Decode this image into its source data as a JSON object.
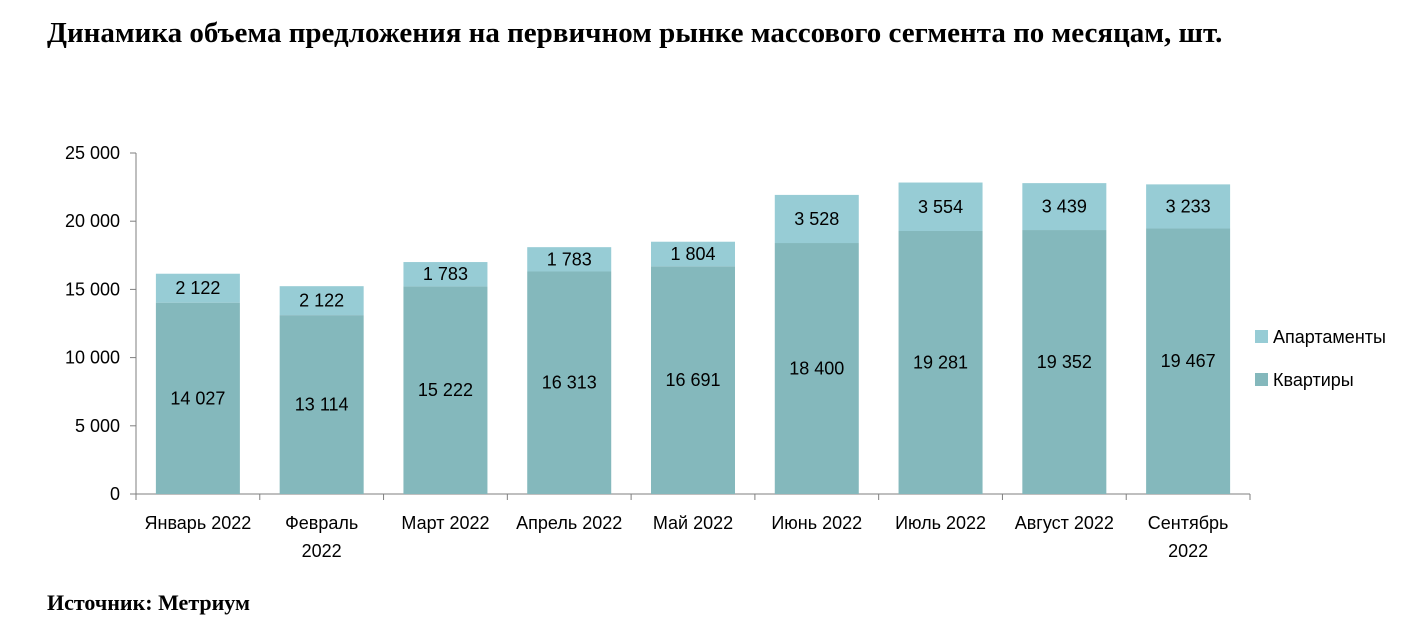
{
  "title": "Динамика объема предложения на первичном рынке массового сегмента по месяцам, шт.",
  "source": "Источник: Метриум",
  "colors": {
    "kvartiry": "#84b8bc",
    "apartamenty": "#97ccd5",
    "axis": "#7f7f7f"
  },
  "chart_data": {
    "type": "bar",
    "stacked": true,
    "categories": [
      [
        "Январь 2022"
      ],
      [
        "Февраль",
        "2022"
      ],
      [
        "Март 2022"
      ],
      [
        "Апрель 2022"
      ],
      [
        "Май 2022"
      ],
      [
        "Июнь 2022"
      ],
      [
        "Июль 2022"
      ],
      [
        "Август 2022"
      ],
      [
        "Сентябрь",
        "2022"
      ]
    ],
    "series": [
      {
        "name": "Квартиры",
        "values": [
          14027,
          13114,
          15222,
          16313,
          16691,
          18400,
          19281,
          19352,
          19467
        ]
      },
      {
        "name": "Апартаменты",
        "values": [
          2122,
          2122,
          1783,
          1783,
          1804,
          3528,
          3554,
          3439,
          3233
        ]
      }
    ],
    "ylim": [
      0,
      25000
    ],
    "yticks": [
      0,
      5000,
      10000,
      15000,
      20000,
      25000
    ],
    "ytick_labels": [
      "0",
      "5 000",
      "10 000",
      "15 000",
      "20 000",
      "25 000"
    ],
    "legend_position": "right",
    "legend": [
      "Апартаменты",
      "Квартиры"
    ],
    "grid": false
  }
}
